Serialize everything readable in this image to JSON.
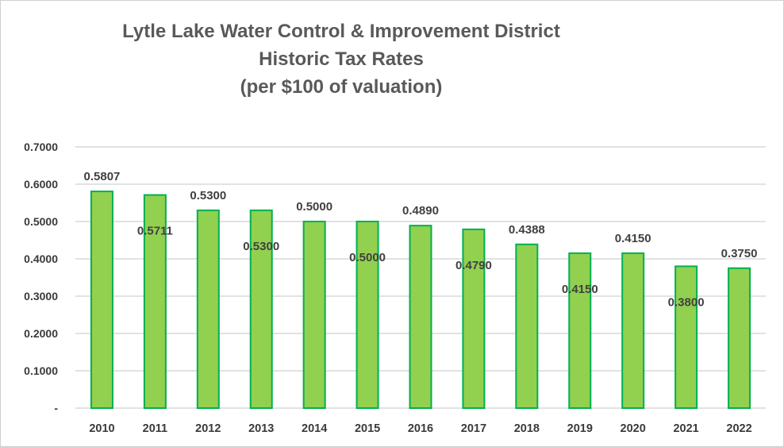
{
  "chart_data": {
    "type": "bar",
    "title": [
      "Lytle Lake Water Control & Improvement District",
      "Historic Tax Rates",
      "(per $100 of valuation)"
    ],
    "xlabel": "",
    "ylabel": "",
    "categories": [
      "2010",
      "2011",
      "2012",
      "2013",
      "2014",
      "2015",
      "2016",
      "2017",
      "2018",
      "2019",
      "2020",
      "2021",
      "2022"
    ],
    "values": [
      0.5807,
      0.5711,
      0.53,
      0.53,
      0.5,
      0.5,
      0.489,
      0.479,
      0.4388,
      0.415,
      0.415,
      0.38,
      0.375
    ],
    "data_labels": [
      "0.5807",
      "0.5711",
      "0.5300",
      "0.5300",
      "0.5000",
      "0.5000",
      "0.4890",
      "0.4790",
      "0.4388",
      "0.4150",
      "0.4150",
      "0.3800",
      "0.3750"
    ],
    "data_label_positions": [
      "above",
      "inside",
      "above",
      "inside",
      "above",
      "inside",
      "above",
      "inside",
      "above",
      "inside",
      "above",
      "inside",
      "above"
    ],
    "ylim": [
      0,
      0.7
    ],
    "yticks": [
      0,
      0.1,
      0.2,
      0.3,
      0.4,
      0.5,
      0.6,
      0.7
    ],
    "ytick_labels": [
      "-",
      "0.1000",
      "0.2000",
      "0.3000",
      "0.4000",
      "0.5000",
      "0.6000",
      "0.7000"
    ],
    "grid": true,
    "legend": "none",
    "colors": {
      "bar_fill": "#92d050",
      "bar_edge": "#00b050",
      "gridline": "#d9d9d9"
    }
  }
}
